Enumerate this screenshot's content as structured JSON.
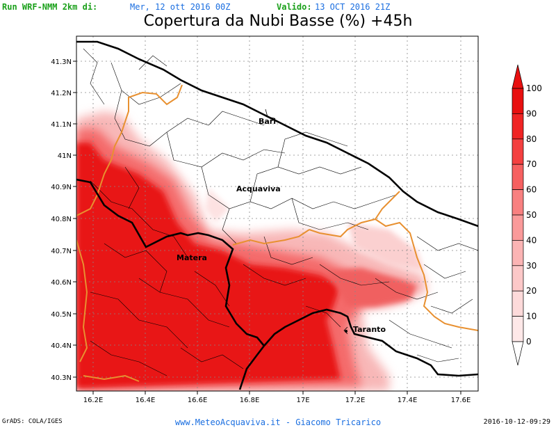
{
  "header": {
    "run_label": "Run WRF-NMM 2km di:",
    "run_date": "Mer, 12 ott 2016 00Z",
    "valid_label": "Valido:",
    "valid_date": "13 OCT 2016 21Z"
  },
  "title": "Copertura da Nubi Basse (%) +45h",
  "map": {
    "lon_ticks": [
      "16.2E",
      "16.4E",
      "16.6E",
      "16.8E",
      "17E",
      "17.2E",
      "17.4E",
      "17.6E"
    ],
    "lat_ticks": [
      "41.3N",
      "41.2N",
      "41.1N",
      "41N",
      "40.9N",
      "40.8N",
      "40.7N",
      "40.6N",
      "40.5N",
      "40.4N",
      "40.3N"
    ],
    "cities": [
      {
        "name": "Bari"
      },
      {
        "name": "Acquaviva"
      },
      {
        "name": "Matera"
      },
      {
        "name": "Taranto"
      }
    ]
  },
  "colorbar": {
    "labels": [
      "100",
      "90",
      "80",
      "70",
      "60",
      "50",
      "40",
      "30",
      "20",
      "10",
      "0"
    ],
    "colors": [
      "#e81010",
      "#f02424",
      "#f44040",
      "#f66060",
      "#f88080",
      "#fa9a9a",
      "#fbb4b4",
      "#fcc8c8",
      "#fddada",
      "#fee8e8",
      "#ffffff"
    ]
  },
  "footer": {
    "grads": "GrADS: COLA/IGES",
    "credit": "www.MeteoAcquaviva.it - Giacomo Tricarico",
    "timestamp": "2016-10-12-09:29"
  }
}
